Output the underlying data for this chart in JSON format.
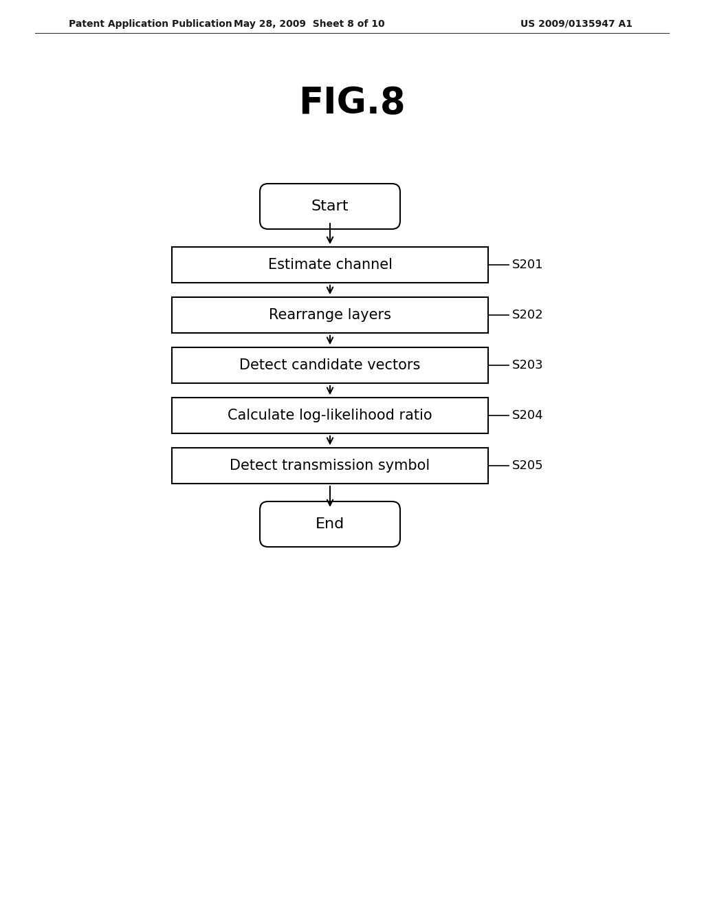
{
  "fig_title": "FIG.8",
  "header_left": "Patent Application Publication",
  "header_mid": "May 28, 2009  Sheet 8 of 10",
  "header_right": "US 2009/0135947 A1",
  "background_color": "#ffffff",
  "flowchart": {
    "start_label": "Start",
    "end_label": "End",
    "boxes": [
      {
        "label": "Estimate channel",
        "tag": "S201"
      },
      {
        "label": "Rearrange layers",
        "tag": "S202"
      },
      {
        "label": "Detect candidate vectors",
        "tag": "S203"
      },
      {
        "label": "Calculate log-likelihood ratio",
        "tag": "S204"
      },
      {
        "label": "Detect transmission symbol",
        "tag": "S205"
      }
    ]
  }
}
